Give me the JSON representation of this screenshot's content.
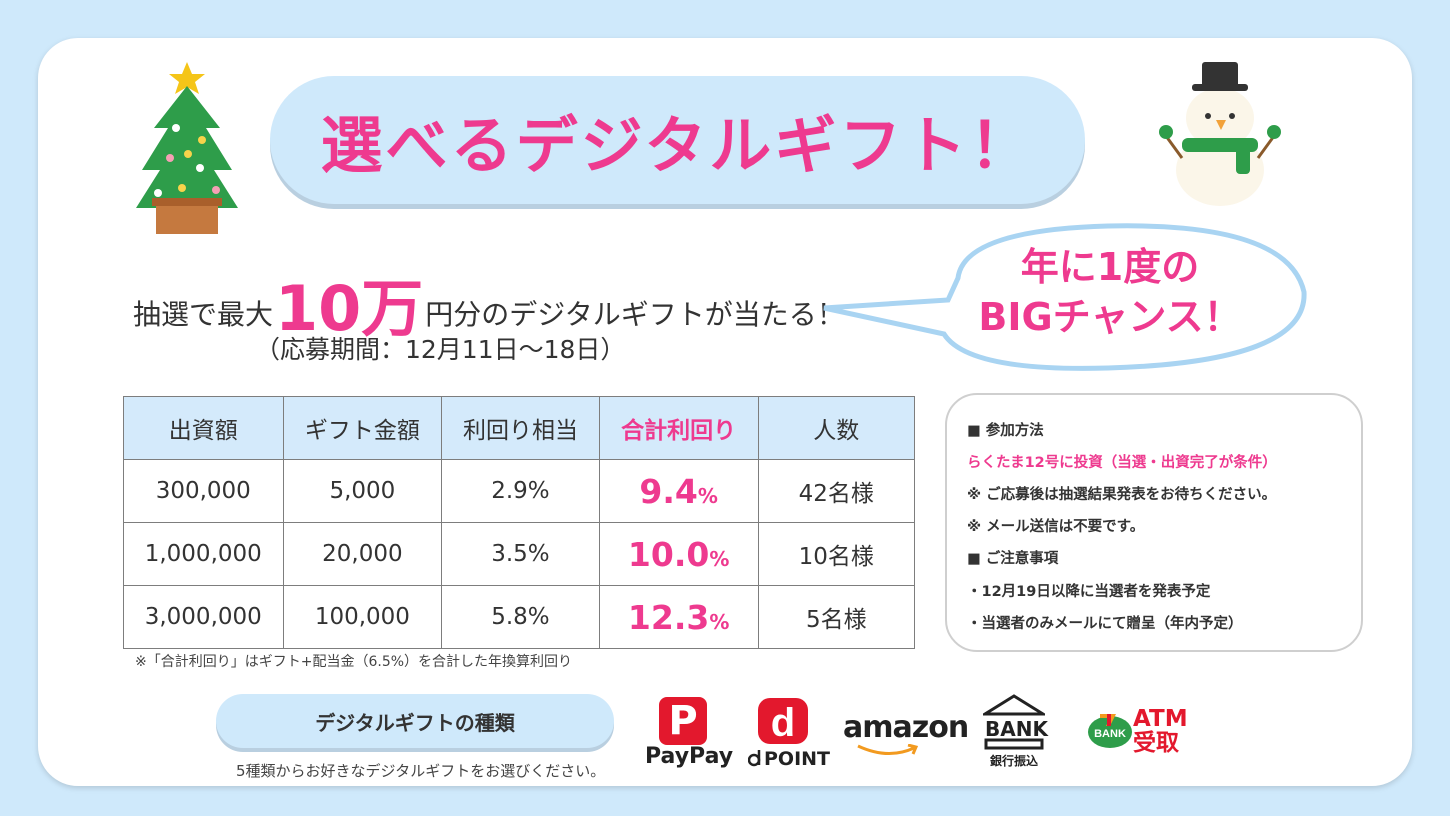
{
  "title": "選べるデジタルギフト！",
  "headline": {
    "prefix": "抽選で最大",
    "amount": "10万",
    "suffix": "円分のデジタルギフトが当たる！"
  },
  "period": "（応募期間：12月11日〜18日）",
  "bubble": {
    "line1": "年に1度の",
    "line2": "BIGチャンス！"
  },
  "table": {
    "headers": [
      "出資額",
      "ギフト金額",
      "利回り相当",
      "合計利回り",
      "人数"
    ],
    "rows": [
      {
        "investment": "300,000",
        "gift": "5,000",
        "yield": "2.9%",
        "total": "9.4",
        "unit": "%",
        "winners": "42名様"
      },
      {
        "investment": "1,000,000",
        "gift": "20,000",
        "yield": "3.5%",
        "total": "10.0",
        "unit": "%",
        "winners": "10名様"
      },
      {
        "investment": "3,000,000",
        "gift": "100,000",
        "yield": "5.8%",
        "total": "12.3",
        "unit": "%",
        "winners": "5名様"
      }
    ],
    "note": "※「合計利回り」はギフト+配当金（6.5%）を合計した年換算利回り"
  },
  "info": {
    "lines": [
      "■ 参加方法",
      "らくたま12号に投資（当選・出資完了が条件）",
      "※ ご応募後は抽選結果発表をお待ちください。",
      "※ メール送信は不要です。",
      "■ ご注意事項",
      "・12月19日以降に当選者を発表予定",
      "・当選者のみメールにて贈呈（年内予定）"
    ]
  },
  "gift_types": {
    "label": "デジタルギフトの種類",
    "sub": "5種類からお好きなデジタルギフトをお選びください。"
  },
  "logos": {
    "paypay_mark": "P",
    "paypay": "PayPay",
    "dpoint_mark": "d",
    "dpoint": "POINT",
    "amazon": "amazon",
    "bank": "BANK",
    "bank_sub": "銀行振込",
    "seven_badge": "BANK",
    "atm1": "ATM",
    "atm2": "受取"
  },
  "colors": {
    "accent_pink": "#ee3a8f",
    "light_blue": "#cfe9fb",
    "paypay_red": "#e3182d",
    "tree_green": "#2e9d4a"
  }
}
